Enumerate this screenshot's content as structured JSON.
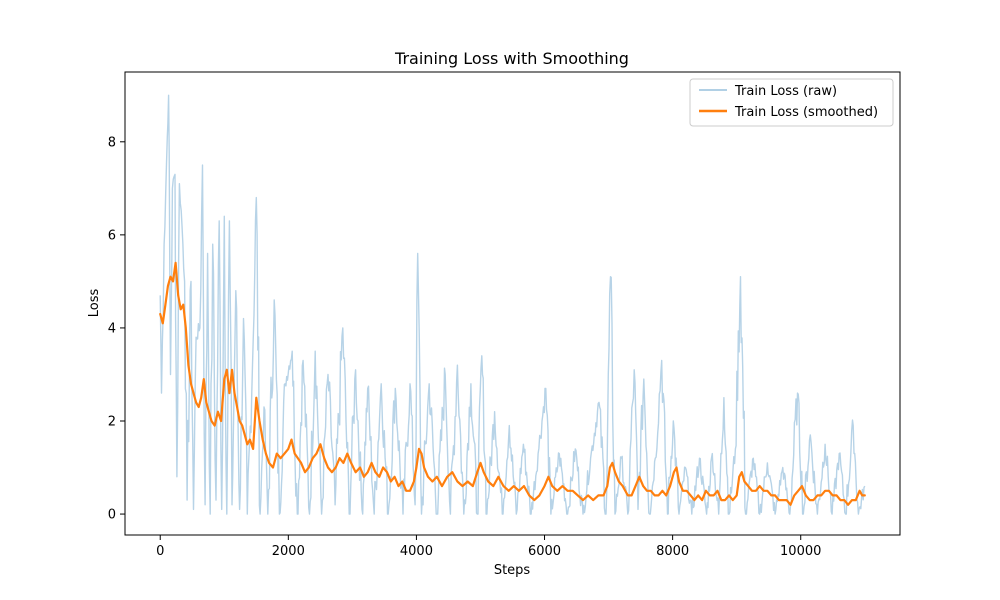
{
  "chart_data": {
    "type": "line",
    "title": "Training Loss with Smoothing",
    "xlabel": "Steps",
    "ylabel": "Loss",
    "xlim": [
      -550,
      11550
    ],
    "ylim": [
      -0.45,
      9.5
    ],
    "xticks": [
      0,
      2000,
      4000,
      6000,
      8000,
      10000
    ],
    "xtick_labels": [
      "0",
      "2000",
      "4000",
      "6000",
      "8000",
      "10000"
    ],
    "yticks": [
      0,
      2,
      4,
      6,
      8
    ],
    "ytick_labels": [
      "0",
      "2",
      "4",
      "6",
      "8"
    ],
    "grid": false,
    "legend_position": "top-right",
    "colors": {
      "raw": "#1f77b4",
      "smoothed": "#ff7f0e"
    },
    "series": [
      {
        "name": "Train Loss (raw)",
        "style": "thin-translucent",
        "peaks": [
          [
            0,
            4.7
          ],
          [
            20,
            2.6
          ],
          [
            60,
            5.8
          ],
          [
            110,
            8.1
          ],
          [
            130,
            9.0
          ],
          [
            160,
            3.0
          ],
          [
            190,
            7.0
          ],
          [
            230,
            7.3
          ],
          [
            260,
            0.8
          ],
          [
            300,
            7.1
          ],
          [
            340,
            6.2
          ],
          [
            380,
            5.0
          ],
          [
            420,
            0.3
          ],
          [
            480,
            5.0
          ],
          [
            520,
            0.1
          ],
          [
            560,
            3.8
          ],
          [
            620,
            4.0
          ],
          [
            660,
            7.5
          ],
          [
            700,
            0.2
          ],
          [
            740,
            5.6
          ],
          [
            780,
            0.0
          ],
          [
            820,
            5.8
          ],
          [
            870,
            0.3
          ],
          [
            920,
            6.3
          ],
          [
            960,
            0.1
          ],
          [
            1000,
            6.4
          ],
          [
            1040,
            0.0
          ],
          [
            1080,
            6.3
          ],
          [
            1120,
            0.2
          ],
          [
            1180,
            4.8
          ],
          [
            1240,
            0.1
          ],
          [
            1300,
            4.2
          ],
          [
            1360,
            0.0
          ],
          [
            1440,
            3.2
          ],
          [
            1500,
            6.8
          ],
          [
            1560,
            0.0
          ],
          [
            1620,
            2.3
          ],
          [
            1680,
            0.0
          ],
          [
            1780,
            4.6
          ],
          [
            1860,
            0.0
          ],
          [
            1950,
            2.8
          ],
          [
            2060,
            3.5
          ],
          [
            2140,
            0.0
          ],
          [
            2230,
            3.3
          ],
          [
            2330,
            0.0
          ],
          [
            2420,
            3.5
          ],
          [
            2520,
            0.0
          ],
          [
            2620,
            3.0
          ],
          [
            2730,
            0.2
          ],
          [
            2850,
            4.0
          ],
          [
            2950,
            0.0
          ],
          [
            3050,
            3.1
          ],
          [
            3150,
            0.1
          ],
          [
            3240,
            2.7
          ],
          [
            3340,
            0.0
          ],
          [
            3450,
            2.8
          ],
          [
            3560,
            0.0
          ],
          [
            3670,
            2.7
          ],
          [
            3790,
            0.0
          ],
          [
            3900,
            2.8
          ],
          [
            3980,
            0.2
          ],
          [
            4020,
            5.6
          ],
          [
            4080,
            0.0
          ],
          [
            4200,
            2.8
          ],
          [
            4320,
            0.0
          ],
          [
            4450,
            3.0
          ],
          [
            4530,
            0.0
          ],
          [
            4640,
            3.2
          ],
          [
            4740,
            0.0
          ],
          [
            4850,
            2.8
          ],
          [
            4950,
            0.0
          ],
          [
            5020,
            3.4
          ],
          [
            5100,
            0.0
          ],
          [
            5220,
            2.2
          ],
          [
            5340,
            0.0
          ],
          [
            5450,
            1.9
          ],
          [
            5560,
            0.0
          ],
          [
            5670,
            1.5
          ],
          [
            5790,
            0.0
          ],
          [
            5900,
            1.3
          ],
          [
            6020,
            2.7
          ],
          [
            6100,
            0.0
          ],
          [
            6230,
            1.3
          ],
          [
            6360,
            0.0
          ],
          [
            6480,
            1.4
          ],
          [
            6600,
            0.0
          ],
          [
            6720,
            1.2
          ],
          [
            6850,
            2.4
          ],
          [
            6960,
            0.0
          ],
          [
            7030,
            5.1
          ],
          [
            7100,
            0.0
          ],
          [
            7200,
            1.2
          ],
          [
            7300,
            0.0
          ],
          [
            7400,
            3.1
          ],
          [
            7460,
            0.1
          ],
          [
            7550,
            2.9
          ],
          [
            7640,
            0.0
          ],
          [
            7730,
            1.2
          ],
          [
            7830,
            3.3
          ],
          [
            7920,
            0.0
          ],
          [
            8010,
            2.0
          ],
          [
            8100,
            0.0
          ],
          [
            8200,
            1.0
          ],
          [
            8300,
            0.0
          ],
          [
            8420,
            1.2
          ],
          [
            8530,
            0.0
          ],
          [
            8620,
            1.3
          ],
          [
            8720,
            0.0
          ],
          [
            8800,
            2.5
          ],
          [
            8880,
            0.0
          ],
          [
            8980,
            1.4
          ],
          [
            9060,
            5.1
          ],
          [
            9140,
            0.0
          ],
          [
            9260,
            1.2
          ],
          [
            9360,
            0.0
          ],
          [
            9480,
            1.1
          ],
          [
            9600,
            0.0
          ],
          [
            9720,
            1.0
          ],
          [
            9830,
            0.0
          ],
          [
            9950,
            2.6
          ],
          [
            10040,
            0.0
          ],
          [
            10150,
            1.7
          ],
          [
            10260,
            0.0
          ],
          [
            10380,
            1.5
          ],
          [
            10490,
            0.0
          ],
          [
            10600,
            1.3
          ],
          [
            10700,
            0.0
          ],
          [
            10820,
            1.9
          ],
          [
            10900,
            0.0
          ],
          [
            11000,
            0.6
          ]
        ]
      },
      {
        "name": "Train Loss (smoothed)",
        "style": "thick",
        "points": [
          [
            0,
            4.3
          ],
          [
            40,
            4.1
          ],
          [
            80,
            4.5
          ],
          [
            120,
            4.9
          ],
          [
            160,
            5.1
          ],
          [
            200,
            5.0
          ],
          [
            240,
            5.4
          ],
          [
            280,
            4.7
          ],
          [
            320,
            4.4
          ],
          [
            360,
            4.5
          ],
          [
            400,
            4.0
          ],
          [
            440,
            3.2
          ],
          [
            480,
            2.8
          ],
          [
            520,
            2.6
          ],
          [
            560,
            2.4
          ],
          [
            600,
            2.3
          ],
          [
            640,
            2.5
          ],
          [
            680,
            2.9
          ],
          [
            720,
            2.4
          ],
          [
            760,
            2.2
          ],
          [
            800,
            2.0
          ],
          [
            850,
            1.9
          ],
          [
            900,
            2.2
          ],
          [
            950,
            2.0
          ],
          [
            1000,
            2.9
          ],
          [
            1040,
            3.1
          ],
          [
            1080,
            2.6
          ],
          [
            1120,
            3.1
          ],
          [
            1160,
            2.6
          ],
          [
            1200,
            2.3
          ],
          [
            1240,
            2.0
          ],
          [
            1280,
            1.9
          ],
          [
            1320,
            1.7
          ],
          [
            1360,
            1.5
          ],
          [
            1400,
            1.6
          ],
          [
            1450,
            1.4
          ],
          [
            1500,
            2.5
          ],
          [
            1550,
            2.0
          ],
          [
            1600,
            1.6
          ],
          [
            1650,
            1.3
          ],
          [
            1700,
            1.1
          ],
          [
            1760,
            1.0
          ],
          [
            1820,
            1.3
          ],
          [
            1880,
            1.2
          ],
          [
            1940,
            1.3
          ],
          [
            2000,
            1.4
          ],
          [
            2050,
            1.6
          ],
          [
            2100,
            1.3
          ],
          [
            2150,
            1.2
          ],
          [
            2200,
            1.1
          ],
          [
            2260,
            0.9
          ],
          [
            2320,
            1.0
          ],
          [
            2380,
            1.2
          ],
          [
            2440,
            1.3
          ],
          [
            2500,
            1.5
          ],
          [
            2560,
            1.2
          ],
          [
            2620,
            1.0
          ],
          [
            2680,
            0.9
          ],
          [
            2740,
            1.0
          ],
          [
            2800,
            1.2
          ],
          [
            2860,
            1.1
          ],
          [
            2920,
            1.3
          ],
          [
            2980,
            1.1
          ],
          [
            3050,
            0.9
          ],
          [
            3120,
            1.0
          ],
          [
            3180,
            0.8
          ],
          [
            3240,
            0.9
          ],
          [
            3300,
            1.1
          ],
          [
            3360,
            0.9
          ],
          [
            3420,
            0.8
          ],
          [
            3480,
            1.0
          ],
          [
            3540,
            0.9
          ],
          [
            3600,
            0.7
          ],
          [
            3660,
            0.8
          ],
          [
            3720,
            0.6
          ],
          [
            3780,
            0.7
          ],
          [
            3840,
            0.5
          ],
          [
            3900,
            0.5
          ],
          [
            3960,
            0.7
          ],
          [
            4000,
            1.0
          ],
          [
            4040,
            1.4
          ],
          [
            4080,
            1.3
          ],
          [
            4120,
            1.0
          ],
          [
            4180,
            0.8
          ],
          [
            4250,
            0.7
          ],
          [
            4320,
            0.8
          ],
          [
            4400,
            0.6
          ],
          [
            4480,
            0.8
          ],
          [
            4560,
            0.9
          ],
          [
            4640,
            0.7
          ],
          [
            4720,
            0.6
          ],
          [
            4800,
            0.7
          ],
          [
            4880,
            0.6
          ],
          [
            4950,
            0.9
          ],
          [
            5000,
            1.1
          ],
          [
            5050,
            0.9
          ],
          [
            5120,
            0.7
          ],
          [
            5200,
            0.6
          ],
          [
            5280,
            0.8
          ],
          [
            5360,
            0.6
          ],
          [
            5440,
            0.5
          ],
          [
            5520,
            0.6
          ],
          [
            5600,
            0.5
          ],
          [
            5680,
            0.6
          ],
          [
            5760,
            0.4
          ],
          [
            5840,
            0.3
          ],
          [
            5920,
            0.4
          ],
          [
            6000,
            0.6
          ],
          [
            6060,
            0.8
          ],
          [
            6120,
            0.6
          ],
          [
            6200,
            0.5
          ],
          [
            6280,
            0.6
          ],
          [
            6360,
            0.5
          ],
          [
            6440,
            0.5
          ],
          [
            6520,
            0.4
          ],
          [
            6600,
            0.3
          ],
          [
            6680,
            0.4
          ],
          [
            6760,
            0.3
          ],
          [
            6840,
            0.4
          ],
          [
            6920,
            0.4
          ],
          [
            6980,
            0.6
          ],
          [
            7020,
            1.0
          ],
          [
            7060,
            1.1
          ],
          [
            7100,
            0.9
          ],
          [
            7160,
            0.7
          ],
          [
            7220,
            0.6
          ],
          [
            7300,
            0.4
          ],
          [
            7360,
            0.4
          ],
          [
            7420,
            0.6
          ],
          [
            7480,
            0.8
          ],
          [
            7540,
            0.6
          ],
          [
            7600,
            0.5
          ],
          [
            7660,
            0.5
          ],
          [
            7720,
            0.4
          ],
          [
            7780,
            0.4
          ],
          [
            7840,
            0.5
          ],
          [
            7900,
            0.4
          ],
          [
            7960,
            0.6
          ],
          [
            8020,
            0.9
          ],
          [
            8060,
            1.0
          ],
          [
            8100,
            0.7
          ],
          [
            8160,
            0.5
          ],
          [
            8220,
            0.5
          ],
          [
            8280,
            0.4
          ],
          [
            8340,
            0.3
          ],
          [
            8400,
            0.4
          ],
          [
            8460,
            0.3
          ],
          [
            8520,
            0.5
          ],
          [
            8580,
            0.4
          ],
          [
            8640,
            0.4
          ],
          [
            8700,
            0.5
          ],
          [
            8760,
            0.3
          ],
          [
            8820,
            0.3
          ],
          [
            8880,
            0.4
          ],
          [
            8940,
            0.3
          ],
          [
            9000,
            0.4
          ],
          [
            9040,
            0.8
          ],
          [
            9080,
            0.9
          ],
          [
            9120,
            0.7
          ],
          [
            9180,
            0.6
          ],
          [
            9240,
            0.5
          ],
          [
            9300,
            0.5
          ],
          [
            9360,
            0.6
          ],
          [
            9420,
            0.5
          ],
          [
            9480,
            0.5
          ],
          [
            9540,
            0.4
          ],
          [
            9600,
            0.4
          ],
          [
            9660,
            0.3
          ],
          [
            9720,
            0.3
          ],
          [
            9780,
            0.3
          ],
          [
            9840,
            0.2
          ],
          [
            9900,
            0.4
          ],
          [
            9960,
            0.5
          ],
          [
            10020,
            0.6
          ],
          [
            10080,
            0.4
          ],
          [
            10140,
            0.3
          ],
          [
            10200,
            0.3
          ],
          [
            10260,
            0.4
          ],
          [
            10320,
            0.4
          ],
          [
            10380,
            0.5
          ],
          [
            10440,
            0.5
          ],
          [
            10500,
            0.4
          ],
          [
            10560,
            0.4
          ],
          [
            10620,
            0.3
          ],
          [
            10680,
            0.3
          ],
          [
            10740,
            0.2
          ],
          [
            10800,
            0.3
          ],
          [
            10860,
            0.3
          ],
          [
            10920,
            0.5
          ],
          [
            10960,
            0.4
          ],
          [
            11000,
            0.4
          ]
        ]
      }
    ]
  }
}
